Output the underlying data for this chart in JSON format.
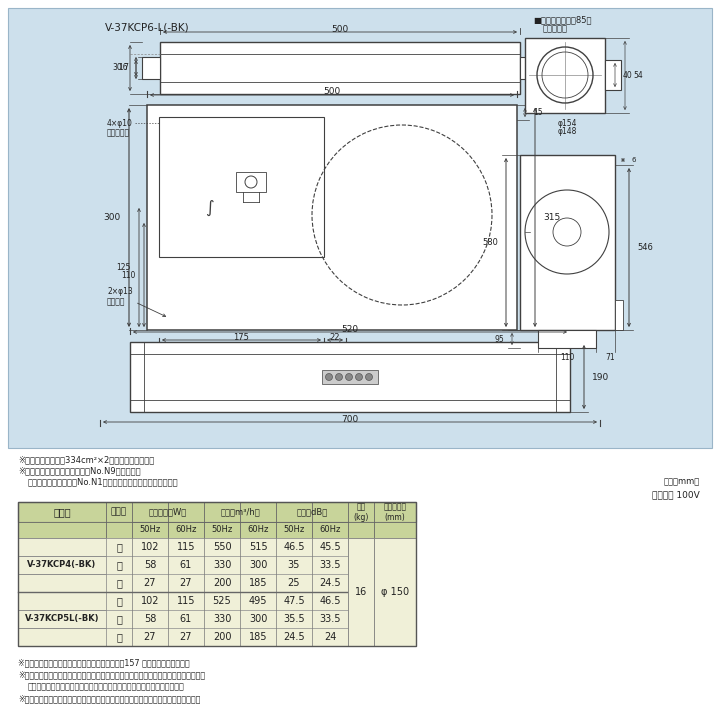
{
  "bg_color": "#cde0ec",
  "white": "#ffffff",
  "lc": "#404040",
  "title": "V-37KCP6-L(-BK)",
  "note1": "※グリル開口面積は334cm²×2枚（フィルター部）",
  "note2": "※色調は（ホワイト）マンセルNo.N9（近似色）",
  "note3": "（ブラック）マンセルNo.N1（近似色）（但し半ツヤ相当品）",
  "unit": "（単位mm）",
  "power": "電源電圧 100V",
  "model1": "V-37KCP4(-BK)",
  "model2": "V-37KCP5L(-BK)",
  "th_bg": "#c8d49a",
  "td_bg": "#f0f0d8",
  "rows": [
    [
      "強",
      "102",
      "115",
      "550",
      "515",
      "46.5",
      "45.5"
    ],
    [
      "中",
      "58",
      "61",
      "330",
      "300",
      "35",
      "33.5"
    ],
    [
      "弱",
      "27",
      "27",
      "200",
      "185",
      "25",
      "24.5"
    ],
    [
      "強",
      "102",
      "115",
      "525",
      "495",
      "47.5",
      "46.5"
    ],
    [
      "中",
      "58",
      "61",
      "330",
      "300",
      "35.5",
      "33.5"
    ],
    [
      "弱",
      "27",
      "27",
      "200",
      "185",
      "24.5",
      "24"
    ]
  ],
  "mass": "16",
  "pipe": "φ 150",
  "fn1": "※電動給気シャッターとの結線方法については、157 ページをご覧ださい。",
  "fn2": "※電動給気シャッター連動出力コードの先端には絶縁用端子が付いています。使用の際",
  "fn3": "このコードを途中から切断して電動給気シャッターに接続してください。",
  "fn4": "※レンジフードファンの設置にあたっては火災予防条例をはじめ法規制があります。"
}
